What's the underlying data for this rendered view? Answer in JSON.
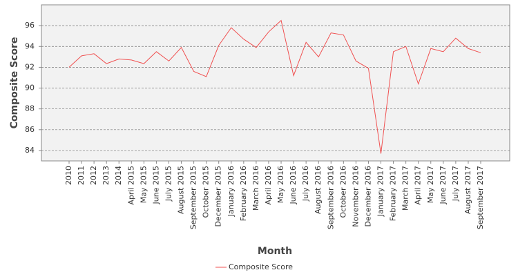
{
  "chart_data": {
    "type": "line",
    "x_label": "Month",
    "y_label": "Composite Score",
    "categories": [
      "2010",
      "2011",
      "2012",
      "2013",
      "2014",
      "April 2015",
      "May 2015",
      "June 2015",
      "July 2015",
      "August 2015",
      "September 2015",
      "October 2015",
      "December 2015",
      "January 2016",
      "February 2016",
      "March 2016",
      "April 2016",
      "May 2016",
      "June 2016",
      "July 2016",
      "August 2016",
      "September 2016",
      "October 2016",
      "November 2016",
      "December 2016",
      "January 2017",
      "February 2017",
      "March 2017",
      "April 2017",
      "May 2017",
      "June 2017",
      "July 2017",
      "August 2017",
      "September 2017"
    ],
    "series": [
      {
        "name": "Composite Score",
        "color": "#f05050",
        "values": [
          92.0,
          93.1,
          93.3,
          92.35,
          92.8,
          92.7,
          92.35,
          93.5,
          92.6,
          93.9,
          91.6,
          91.1,
          94.1,
          95.8,
          94.7,
          93.9,
          95.4,
          96.5,
          91.2,
          94.4,
          93.0,
          95.3,
          95.1,
          92.6,
          91.9,
          83.7,
          93.5,
          94.0,
          90.4,
          93.8,
          93.5,
          94.8,
          93.8,
          93.4
        ]
      }
    ],
    "ylim": [
      83,
      98
    ],
    "yticks": [
      84,
      86,
      88,
      90,
      92,
      94,
      96
    ],
    "grid": true,
    "legend": "bottom"
  }
}
